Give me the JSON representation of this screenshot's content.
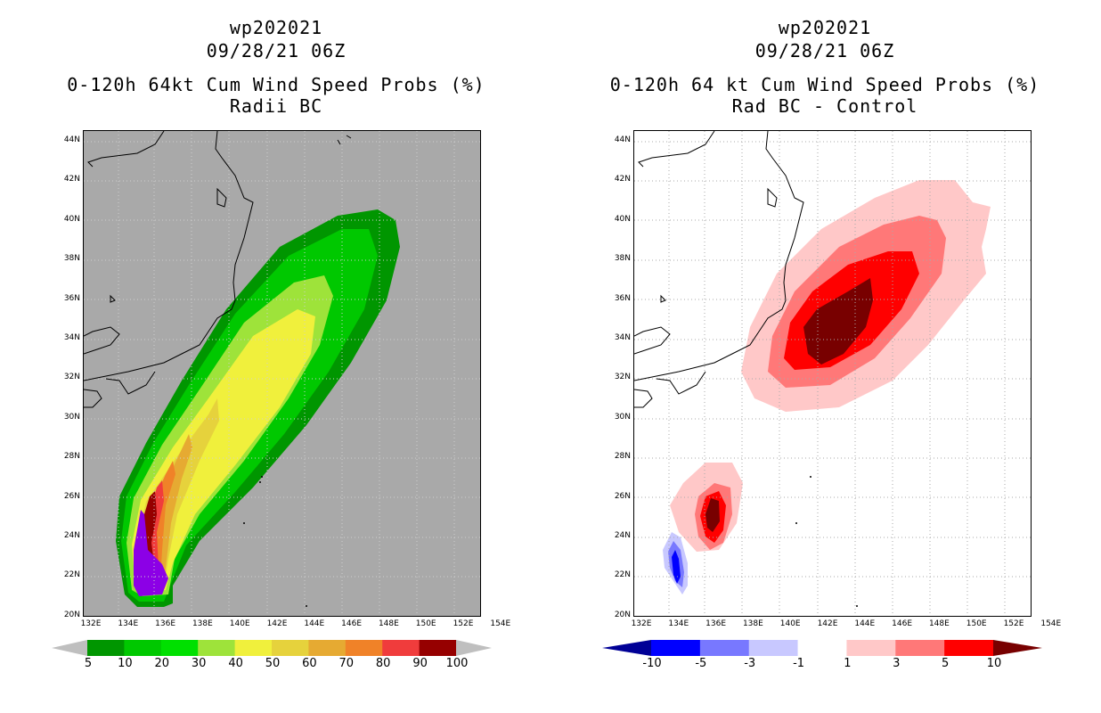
{
  "left": {
    "title_line1": "wp202021",
    "title_line2": "09/28/21 06Z",
    "title_line3": "0-120h 64kt Cum Wind Speed Probs (%)",
    "title_line4": "Radii BC",
    "background_color": "#a9a9a9",
    "colorbar": {
      "labels": [
        "5",
        "10",
        "20",
        "30",
        "40",
        "50",
        "60",
        "70",
        "80",
        "90",
        "100"
      ],
      "colors": [
        "#009600",
        "#00c800",
        "#00e000",
        "#9ee33a",
        "#f0f03c",
        "#e6d23c",
        "#e6aa32",
        "#f08228",
        "#f03c3c",
        "#960000",
        "#8c00e6"
      ],
      "arrow_color": "#bfbfbf"
    }
  },
  "right": {
    "title_line1": "wp202021",
    "title_line2": "09/28/21 06Z",
    "title_line3": "0-120h 64 kt Cum Wind Speed Probs (%)",
    "title_line4": "Rad BC - Control",
    "background_color": "#ffffff",
    "colorbar": {
      "labels": [
        "-10",
        "-5",
        "-3",
        "-1",
        "1",
        "3",
        "5",
        "10"
      ],
      "colors": [
        "#000096",
        "#0000ff",
        "#7878ff",
        "#c8c8ff",
        "#ffffff",
        "#ffc8c8",
        "#ff7878",
        "#ff0000",
        "#780000"
      ]
    }
  },
  "axes": {
    "lat_labels": [
      "44N",
      "42N",
      "40N",
      "38N",
      "36N",
      "34N",
      "32N",
      "30N",
      "28N",
      "26N",
      "24N",
      "22N",
      "20N"
    ],
    "lon_labels": [
      "132E",
      "134E",
      "136E",
      "138E",
      "140E",
      "142E",
      "144E",
      "146E",
      "148E",
      "150E",
      "152E",
      "154E"
    ]
  }
}
